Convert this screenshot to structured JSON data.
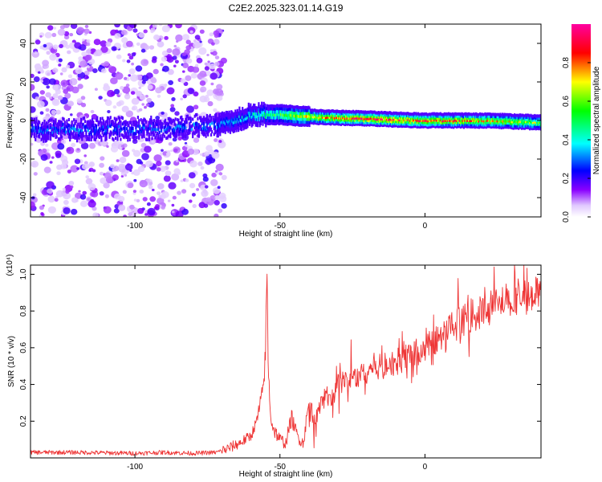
{
  "title": "C2E2.2025.323.01.14.G19",
  "chart_data": [
    {
      "type": "heatmap",
      "name": "spectrogram",
      "xlabel": "Height of straight line (km)",
      "ylabel": "Frequency (Hz)",
      "xlim": [
        -136,
        40
      ],
      "ylim": [
        -50,
        50
      ],
      "xticks": [
        -100,
        -50,
        0
      ],
      "yticks": [
        -40,
        -20,
        0,
        20,
        40
      ],
      "xtick_labels": [
        "-100",
        "-50",
        "0"
      ],
      "ytick_labels": [
        "-40",
        "-20",
        "0",
        "20",
        "40"
      ],
      "colorbar": {
        "label": "Normalized spectral amplitude",
        "range": [
          0.0,
          1.0
        ],
        "ticks": [
          0.0,
          0.2,
          0.4,
          0.6,
          0.8
        ],
        "tick_labels": [
          "0.0",
          "0.2",
          "0.4",
          "0.6",
          "0.8"
        ],
        "colors": [
          "#ffffff",
          "#e0c8ff",
          "#8a00ff",
          "#0000ff",
          "#00ffff",
          "#00ff00",
          "#ffff00",
          "#ff0000",
          "#ff00a0"
        ]
      },
      "features": {
        "noise_region_x": [
          -136,
          -72
        ],
        "carrier_frequency_hz": 0,
        "band_trace": [
          {
            "x": -136,
            "y": -5,
            "amp": 0.3
          },
          {
            "x": -90,
            "y": -4,
            "amp": 0.28
          },
          {
            "x": -70,
            "y": -2,
            "amp": 0.3
          },
          {
            "x": -60,
            "y": 3,
            "amp": 0.4
          },
          {
            "x": -50,
            "y": 3,
            "amp": 0.55
          },
          {
            "x": -40,
            "y": 2,
            "amp": 0.7
          },
          {
            "x": -20,
            "y": 1,
            "amp": 0.85
          },
          {
            "x": 0,
            "y": 0,
            "amp": 0.8
          },
          {
            "x": 20,
            "y": 0,
            "amp": 0.75
          },
          {
            "x": 40,
            "y": -1,
            "amp": 0.6
          }
        ]
      }
    },
    {
      "type": "line",
      "name": "snr",
      "xlabel": "Height of straight line (km)",
      "ylabel": "SNR (10 * v/v)",
      "y_multiplier": "(x10⁴)",
      "xlim": [
        -136,
        40
      ],
      "ylim": [
        0.0,
        1.05
      ],
      "xticks": [
        -100,
        -50,
        0
      ],
      "yticks": [
        0.2,
        0.4,
        0.6,
        0.8,
        1.0
      ],
      "xtick_labels": [
        "-100",
        "-50",
        "0"
      ],
      "ytick_labels": [
        "0.2",
        "0.4",
        "0.6",
        "0.8",
        "1.0"
      ],
      "color": "#ee3333",
      "x": [
        -136,
        -120,
        -100,
        -90,
        -80,
        -72,
        -68,
        -64,
        -60,
        -58,
        -56,
        -55,
        -54.5,
        -54,
        -53,
        -52,
        -50,
        -48,
        -46,
        -44,
        -42,
        -40,
        -38,
        -36,
        -34,
        -32,
        -30,
        -26,
        -22,
        -18,
        -14,
        -10,
        -6,
        -2,
        2,
        6,
        10,
        14,
        18,
        22,
        26,
        30,
        34,
        38,
        40
      ],
      "values": [
        0.03,
        0.03,
        0.025,
        0.03,
        0.025,
        0.03,
        0.05,
        0.08,
        0.12,
        0.2,
        0.35,
        0.55,
        1.05,
        0.45,
        0.2,
        0.15,
        0.1,
        0.08,
        0.22,
        0.12,
        0.08,
        0.3,
        0.2,
        0.28,
        0.35,
        0.32,
        0.4,
        0.43,
        0.45,
        0.5,
        0.5,
        0.52,
        0.56,
        0.58,
        0.62,
        0.66,
        0.72,
        0.76,
        0.78,
        0.82,
        0.85,
        0.86,
        0.88,
        0.9,
        0.9
      ]
    }
  ]
}
